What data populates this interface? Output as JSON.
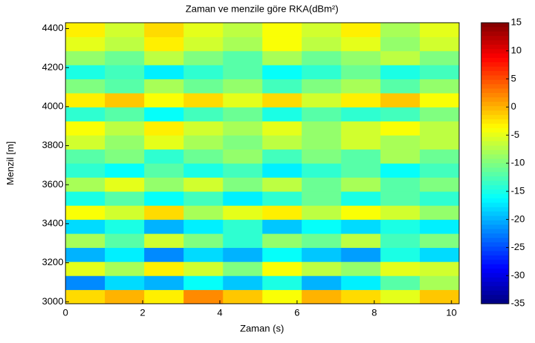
{
  "chart_data": {
    "type": "heatmap",
    "title": "Zaman ve menzile göre RKA(dBm²)",
    "xlabel": "Zaman (s)",
    "ylabel": "Menzil [m]",
    "x": [
      0.51,
      1.53,
      2.55,
      3.57,
      4.59,
      5.61,
      6.63,
      7.65,
      8.67,
      9.69
    ],
    "y": [
      3026,
      3098,
      3170,
      3242,
      3314,
      3386,
      3458,
      3530,
      3602,
      3674,
      3746,
      3818,
      3890,
      3962,
      4034,
      4106,
      4178,
      4250,
      4322,
      4394
    ],
    "values": [
      [
        -2,
        0,
        -3,
        2,
        -1,
        -4,
        0,
        -2,
        -5,
        -1
      ],
      [
        -22,
        -18,
        -20,
        -16,
        -19,
        -15,
        -20,
        -17,
        -12,
        -8
      ],
      [
        -5,
        -8,
        -3,
        -6,
        -10,
        -4,
        -7,
        -9,
        -5,
        -6
      ],
      [
        -20,
        -17,
        -22,
        -18,
        -20,
        -16,
        -19,
        -21,
        -15,
        -18
      ],
      [
        -8,
        -12,
        -6,
        -10,
        -14,
        -9,
        -11,
        -7,
        -13,
        -10
      ],
      [
        -18,
        -15,
        -20,
        -17,
        -14,
        -19,
        -16,
        -18,
        -15,
        -17
      ],
      [
        -4,
        -6,
        -2,
        -8,
        -5,
        -3,
        -7,
        -4,
        -6,
        -9
      ],
      [
        -15,
        -12,
        -16,
        -13,
        -17,
        -14,
        -11,
        -15,
        -12,
        -14
      ],
      [
        -8,
        -5,
        -9,
        -6,
        -10,
        -7,
        -11,
        -8,
        -12,
        -10
      ],
      [
        -14,
        -16,
        -12,
        -15,
        -13,
        -17,
        -14,
        -12,
        -16,
        -13
      ],
      [
        -12,
        -10,
        -14,
        -11,
        -9,
        -13,
        -10,
        -12,
        -8,
        -11
      ],
      [
        -6,
        -9,
        -5,
        -8,
        -10,
        -7,
        -9,
        -6,
        -8,
        -7
      ],
      [
        -4,
        -7,
        -3,
        -6,
        -8,
        -5,
        -9,
        -6,
        -4,
        -7
      ],
      [
        -14,
        -12,
        -16,
        -13,
        -11,
        -15,
        -12,
        -14,
        -13,
        -10
      ],
      [
        -3,
        -1,
        -4,
        -2,
        -5,
        -2,
        -6,
        -3,
        -1,
        -4
      ],
      [
        -10,
        -12,
        -8,
        -11,
        -9,
        -13,
        -10,
        -8,
        -12,
        -9
      ],
      [
        -15,
        -13,
        -17,
        -14,
        -12,
        -16,
        -14,
        -11,
        -15,
        -13
      ],
      [
        -9,
        -11,
        -7,
        -10,
        -12,
        -8,
        -11,
        -9,
        -7,
        -10
      ],
      [
        -5,
        -7,
        -3,
        -6,
        -8,
        -4,
        -7,
        -5,
        -9,
        -6
      ],
      [
        -3,
        -6,
        -2,
        -5,
        -7,
        -4,
        -6,
        -3,
        -8,
        -5
      ]
    ],
    "xlim": [
      0,
      10.2
    ],
    "xticks": [
      0,
      2,
      4,
      6,
      8,
      10
    ],
    "ylim": [
      2990,
      4430
    ],
    "yticks": [
      3000,
      3200,
      3400,
      3600,
      3800,
      4000,
      4200,
      4400
    ],
    "clim": [
      -35,
      15
    ],
    "cticks": [
      -35,
      -30,
      -25,
      -20,
      -15,
      -10,
      -5,
      0,
      5,
      10,
      15
    ],
    "colormap": "jet"
  }
}
